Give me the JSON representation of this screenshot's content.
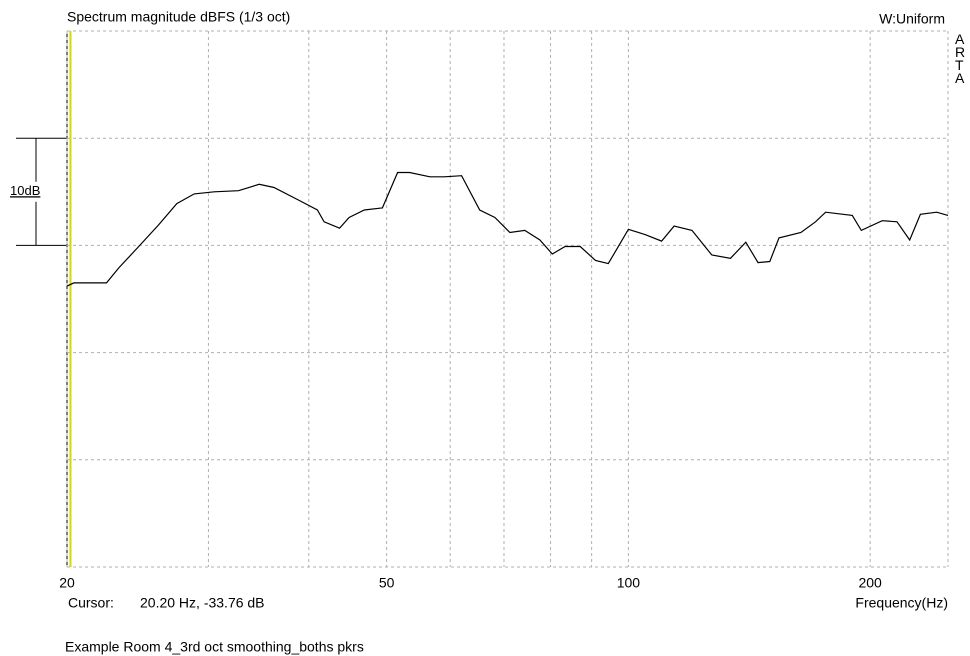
{
  "chart_data": {
    "type": "line",
    "title": "Spectrum magnitude dBFS (1/3 oct)",
    "window_label": "W:Uniform",
    "brand": "ARTA",
    "xlabel": "Frequency(Hz)",
    "footer": "Example Room 4_3rd oct smoothing_boths pkrs",
    "xscale": "log",
    "xlim": [
      20,
      250
    ],
    "xticks": [
      20,
      50,
      100,
      200
    ],
    "xgrid": [
      30,
      40,
      60,
      70,
      80,
      90
    ],
    "ylim": [
      -60,
      -10
    ],
    "yticks": [
      -60,
      -50,
      -40,
      -30,
      -20,
      -10
    ],
    "grid": true,
    "scale_bar": {
      "from": -30,
      "to": -20,
      "label": "10dB"
    },
    "cursor": {
      "label": "Cursor:",
      "x": 20.2,
      "text": "20.20 Hz, -33.76 dB",
      "color": "#d8d800"
    },
    "series": [
      {
        "color": "#000000",
        "x": [
          20,
          20.4,
          22.4,
          23.2,
          24.5,
          26,
          27.4,
          28.8,
          30.5,
          32.7,
          34.7,
          36.2,
          38.9,
          41,
          41.8,
          43.7,
          44.9,
          46.9,
          49.4,
          51.6,
          53.4,
          56.6,
          59,
          62,
          65.3,
          68.2,
          71.2,
          74.3,
          77.6,
          80.4,
          83.4,
          87.1,
          91,
          94.4,
          100,
          105,
          110,
          114,
          120,
          127,
          134,
          140,
          145,
          150,
          154,
          164,
          171,
          176,
          190,
          195,
          207,
          216,
          224,
          231,
          242,
          250
        ],
        "values": [
          -33.8,
          -33.5,
          -33.5,
          -32.1,
          -30.2,
          -28.1,
          -26.1,
          -25.2,
          -25.0,
          -24.9,
          -24.3,
          -24.6,
          -25.8,
          -26.7,
          -27.8,
          -28.4,
          -27.4,
          -26.7,
          -26.5,
          -23.2,
          -23.2,
          -23.6,
          -23.6,
          -23.5,
          -26.7,
          -27.4,
          -28.8,
          -28.6,
          -29.5,
          -30.8,
          -30.1,
          -30.1,
          -31.4,
          -31.7,
          -28.5,
          -29.0,
          -29.6,
          -28.2,
          -28.6,
          -30.9,
          -31.2,
          -29.7,
          -31.6,
          -31.5,
          -29.3,
          -28.8,
          -27.8,
          -26.9,
          -27.2,
          -28.6,
          -27.7,
          -27.8,
          -29.5,
          -27.1,
          -26.9,
          -27.2
        ]
      }
    ]
  }
}
